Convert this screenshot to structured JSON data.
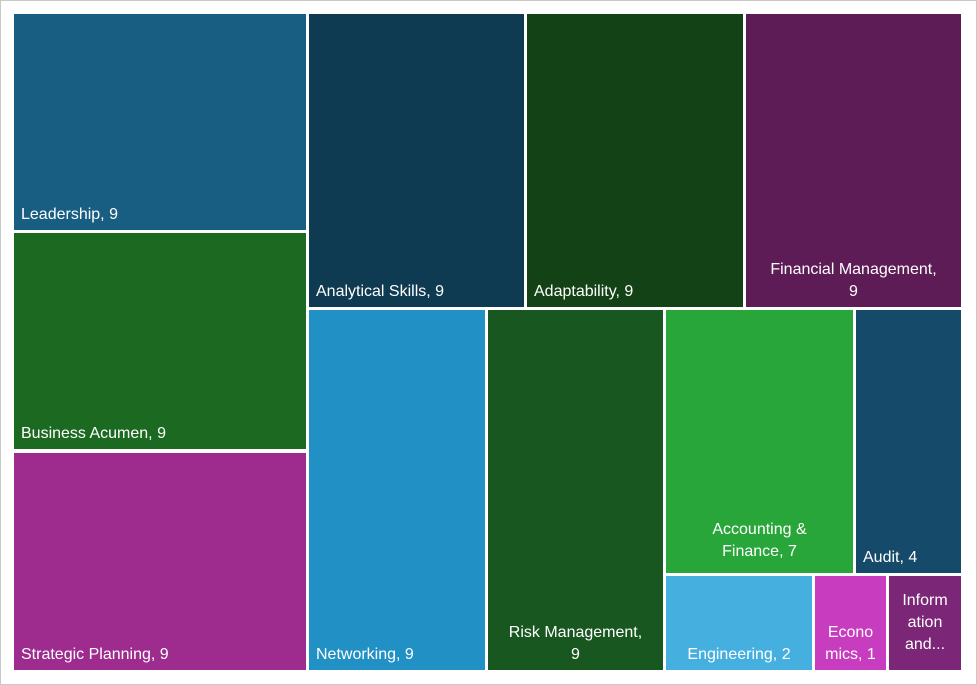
{
  "chart_data": {
    "type": "treemap",
    "items": [
      {
        "name": "Leadership",
        "value": 9,
        "label": "Leadership, 9",
        "color": "#175e82"
      },
      {
        "name": "Business Acumen",
        "value": 9,
        "label": "Business Acumen, 9",
        "color": "#1c6a22"
      },
      {
        "name": "Strategic Planning",
        "value": 9,
        "label": "Strategic Planning, 9",
        "color": "#9e2b8e"
      },
      {
        "name": "Analytical Skills",
        "value": 9,
        "label": "Analytical Skills, 9",
        "color": "#0e3a52"
      },
      {
        "name": "Adaptability",
        "value": 9,
        "label": "Adaptability, 9",
        "color": "#134217"
      },
      {
        "name": "Financial Management",
        "value": 9,
        "label": "Financial Management, 9",
        "color": "#5e1c57"
      },
      {
        "name": "Networking",
        "value": 9,
        "label": "Networking, 9",
        "color": "#2190c4"
      },
      {
        "name": "Risk Management",
        "value": 9,
        "label": "Risk Management, 9",
        "color": "#195720"
      },
      {
        "name": "Accounting & Finance",
        "value": 7,
        "label": "Accounting & Finance, 7",
        "color": "#29a63a"
      },
      {
        "name": "Audit",
        "value": 4,
        "label": "Audit, 4",
        "color": "#154a6a"
      },
      {
        "name": "Engineering",
        "value": 2,
        "label": "Engineering, 2",
        "color": "#45b0e0"
      },
      {
        "name": "Economics",
        "value": 1,
        "label": "Economics, 1",
        "color": "#c83cc0"
      },
      {
        "name": "Information and...",
        "value": 1,
        "label": "Information and...",
        "color": "#7b2676"
      }
    ]
  }
}
